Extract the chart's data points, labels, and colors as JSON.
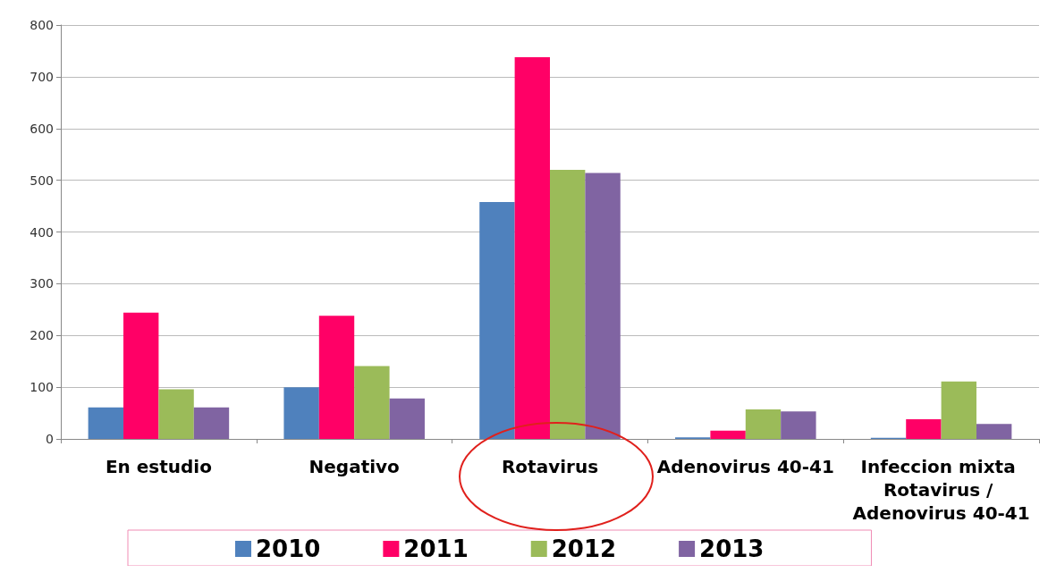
{
  "chart_data": {
    "type": "bar",
    "categories": [
      "En estudio",
      "Negativo",
      "Rotavirus",
      "Adenovirus 40-41",
      "Infeccion mixta Rotavirus / Adenovirus 40-41"
    ],
    "series": [
      {
        "name": "2010",
        "color": "#4f81bd",
        "values": [
          61,
          100,
          458,
          3,
          2
        ]
      },
      {
        "name": "2011",
        "color": "#ff0066",
        "values": [
          244,
          238,
          738,
          16,
          38
        ]
      },
      {
        "name": "2012",
        "color": "#9bbb59",
        "values": [
          96,
          141,
          520,
          57,
          111
        ]
      },
      {
        "name": "2013",
        "color": "#8064a2",
        "values": [
          61,
          78,
          514,
          53,
          29
        ]
      }
    ],
    "ylim": [
      0,
      800
    ],
    "yticks": [
      0,
      100,
      200,
      300,
      400,
      500,
      600,
      700,
      800
    ],
    "grid": "y",
    "legend": "bottom"
  }
}
